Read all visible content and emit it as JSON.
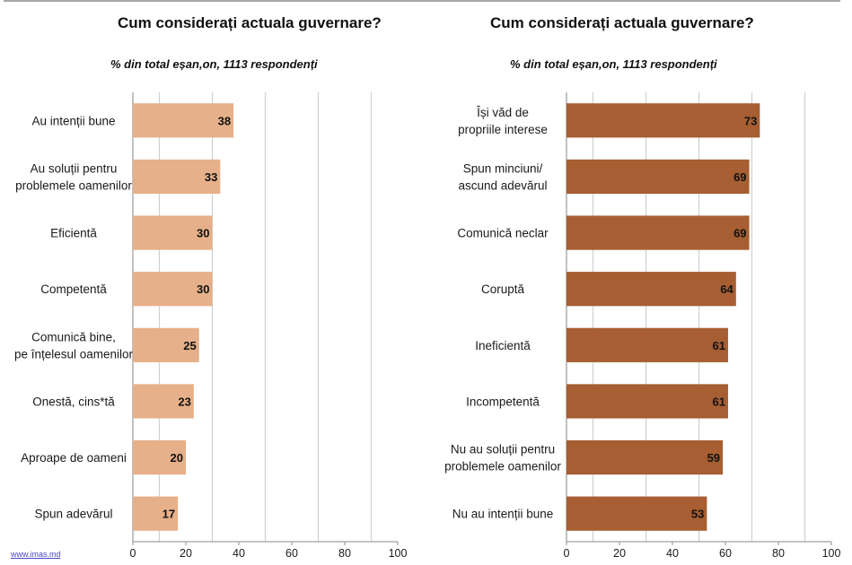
{
  "source_link": "www.imas.md",
  "chart_data": [
    {
      "type": "bar",
      "orientation": "horizontal",
      "title": "Cum considerați actuala guvernare?",
      "subtitle": "% din total eșan,on, 1113 respondenți",
      "xlabel": "",
      "ylabel": "",
      "xlim": [
        0,
        100
      ],
      "xticks": [
        0,
        20,
        40,
        60,
        80,
        100
      ],
      "gridlines": [
        10,
        30,
        50,
        70,
        90
      ],
      "grid": true,
      "color": "#E6B08A",
      "categories": [
        [
          "Au intenții bune"
        ],
        [
          "Au soluții pentru",
          "problemele oamenilor"
        ],
        [
          "Eficientă"
        ],
        [
          "Competentă"
        ],
        [
          "Comunică bine,",
          "pe înțelesul oamenilor"
        ],
        [
          "Onestă, cins*tă"
        ],
        [
          "Aproape de oameni"
        ],
        [
          "Spun adevărul"
        ]
      ],
      "values": [
        38,
        33,
        30,
        30,
        25,
        23,
        20,
        17
      ]
    },
    {
      "type": "bar",
      "orientation": "horizontal",
      "title": "Cum considerați actuala guvernare?",
      "subtitle": "% din total eșan,on, 1113 respondenți",
      "xlabel": "",
      "ylabel": "",
      "xlim": [
        0,
        100
      ],
      "xticks": [
        0,
        20,
        40,
        60,
        80,
        100
      ],
      "gridlines": [
        10,
        30,
        50,
        70,
        90
      ],
      "grid": true,
      "color": "#A65E32",
      "categories": [
        [
          "Își văd de",
          "propriile interese"
        ],
        [
          "Spun minciuni/",
          "ascund adevărul"
        ],
        [
          "Comunică neclar"
        ],
        [
          "Coruptă"
        ],
        [
          "Ineficientă"
        ],
        [
          "Incompetentă"
        ],
        [
          "Nu au soluții pentru",
          "problemele oamenilor"
        ],
        [
          "Nu au intenții bune"
        ]
      ],
      "values": [
        73,
        69,
        69,
        64,
        61,
        61,
        59,
        53
      ]
    }
  ]
}
